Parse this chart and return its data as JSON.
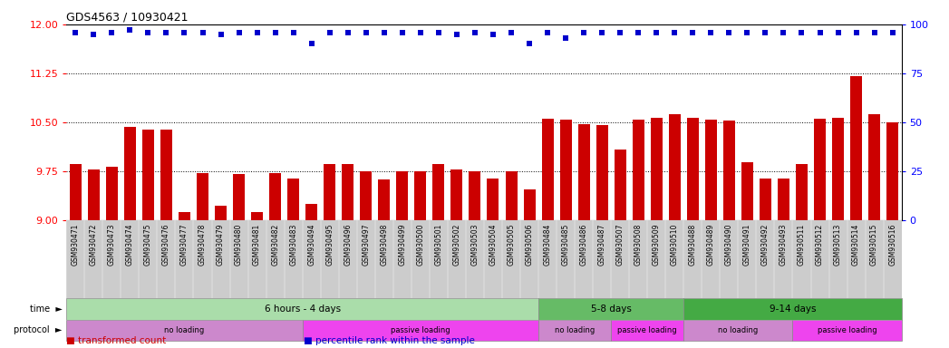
{
  "title": "GDS4563 / 10930421",
  "samples": [
    "GSM930471",
    "GSM930472",
    "GSM930473",
    "GSM930474",
    "GSM930475",
    "GSM930476",
    "GSM930477",
    "GSM930478",
    "GSM930479",
    "GSM930480",
    "GSM930481",
    "GSM930482",
    "GSM930483",
    "GSM930494",
    "GSM930495",
    "GSM930496",
    "GSM930497",
    "GSM930498",
    "GSM930499",
    "GSM930500",
    "GSM930501",
    "GSM930502",
    "GSM930503",
    "GSM930504",
    "GSM930505",
    "GSM930506",
    "GSM930484",
    "GSM930485",
    "GSM930486",
    "GSM930487",
    "GSM930507",
    "GSM930508",
    "GSM930509",
    "GSM930510",
    "GSM930488",
    "GSM930489",
    "GSM930490",
    "GSM930491",
    "GSM930492",
    "GSM930493",
    "GSM930511",
    "GSM930512",
    "GSM930513",
    "GSM930514",
    "GSM930515",
    "GSM930516"
  ],
  "bar_values": [
    9.85,
    9.78,
    9.82,
    10.42,
    10.38,
    10.38,
    9.12,
    9.72,
    9.21,
    9.71,
    9.12,
    9.72,
    9.63,
    9.25,
    9.86,
    9.86,
    9.75,
    9.62,
    9.75,
    9.75,
    9.85,
    9.78,
    9.75,
    9.63,
    9.75,
    9.47,
    10.55,
    10.54,
    10.47,
    10.45,
    10.08,
    10.54,
    10.56,
    10.62,
    10.56,
    10.54,
    10.53,
    9.88,
    9.63,
    9.63,
    9.85,
    10.55,
    10.57,
    11.2,
    10.62,
    10.5
  ],
  "percentile_values": [
    96,
    95,
    96,
    97,
    96,
    96,
    96,
    96,
    95,
    96,
    96,
    96,
    96,
    90,
    96,
    96,
    96,
    96,
    96,
    96,
    96,
    95,
    96,
    95,
    96,
    90,
    96,
    93,
    96,
    96,
    96,
    96,
    96,
    96,
    96,
    96,
    96,
    96,
    96,
    96,
    96,
    96,
    96,
    96,
    96,
    96
  ],
  "bar_color": "#CC0000",
  "dot_color": "#0000CC",
  "ylim_left": [
    9.0,
    12.0
  ],
  "ylim_right": [
    0,
    100
  ],
  "yticks_left": [
    9.0,
    9.75,
    10.5,
    11.25,
    12.0
  ],
  "yticks_right": [
    0,
    25,
    50,
    75,
    100
  ],
  "hlines": [
    9.75,
    10.5,
    11.25
  ],
  "time_groups": [
    {
      "label": "6 hours - 4 days",
      "start": 0,
      "end": 26,
      "color": "#AADDAA"
    },
    {
      "label": "5-8 days",
      "start": 26,
      "end": 34,
      "color": "#66BB66"
    },
    {
      "label": "9-14 days",
      "start": 34,
      "end": 46,
      "color": "#44AA44"
    }
  ],
  "protocol_groups": [
    {
      "label": "no loading",
      "start": 0,
      "end": 13,
      "color": "#CC88CC"
    },
    {
      "label": "passive loading",
      "start": 13,
      "end": 26,
      "color": "#EE44EE"
    },
    {
      "label": "no loading",
      "start": 26,
      "end": 30,
      "color": "#CC88CC"
    },
    {
      "label": "passive loading",
      "start": 30,
      "end": 34,
      "color": "#EE44EE"
    },
    {
      "label": "no loading",
      "start": 34,
      "end": 40,
      "color": "#CC88CC"
    },
    {
      "label": "passive loading",
      "start": 40,
      "end": 46,
      "color": "#EE44EE"
    }
  ],
  "xtick_bg": "#CCCCCC",
  "legend_items": [
    {
      "label": "transformed count",
      "color": "#CC0000"
    },
    {
      "label": "percentile rank within the sample",
      "color": "#0000CC"
    }
  ]
}
